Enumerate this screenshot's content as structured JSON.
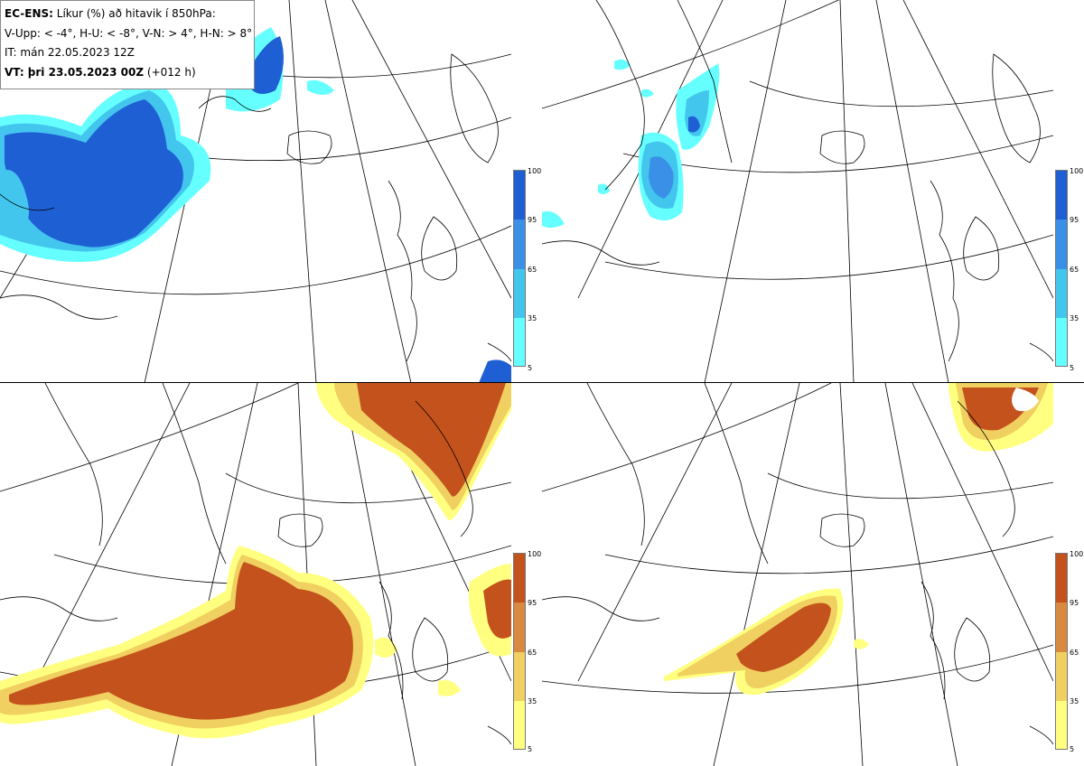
{
  "legend": {
    "line1_bold": "EC-ENS:",
    "line1_rest": " Líkur (%) að hitavik í 850hPa:",
    "line2": "V-Upp: < -4°, H-U: < -8°, V-N: > 4°, H-N: > 8°",
    "line3": "IT: mán 22.05.2023 12Z",
    "line4_bold": "VT: þri 23.05.2023 00Z",
    "line4_rest": " (+012 h)"
  },
  "colorbar_ticks": [
    "100",
    "95",
    "65",
    "35",
    "5"
  ],
  "colors": {
    "cold": [
      "#66ffff",
      "#43c6ee",
      "#3a8fe6",
      "#1f5fd4"
    ],
    "warm": [
      "#ffff80",
      "#f0d060",
      "#d98a40",
      "#c4521c"
    ]
  }
}
